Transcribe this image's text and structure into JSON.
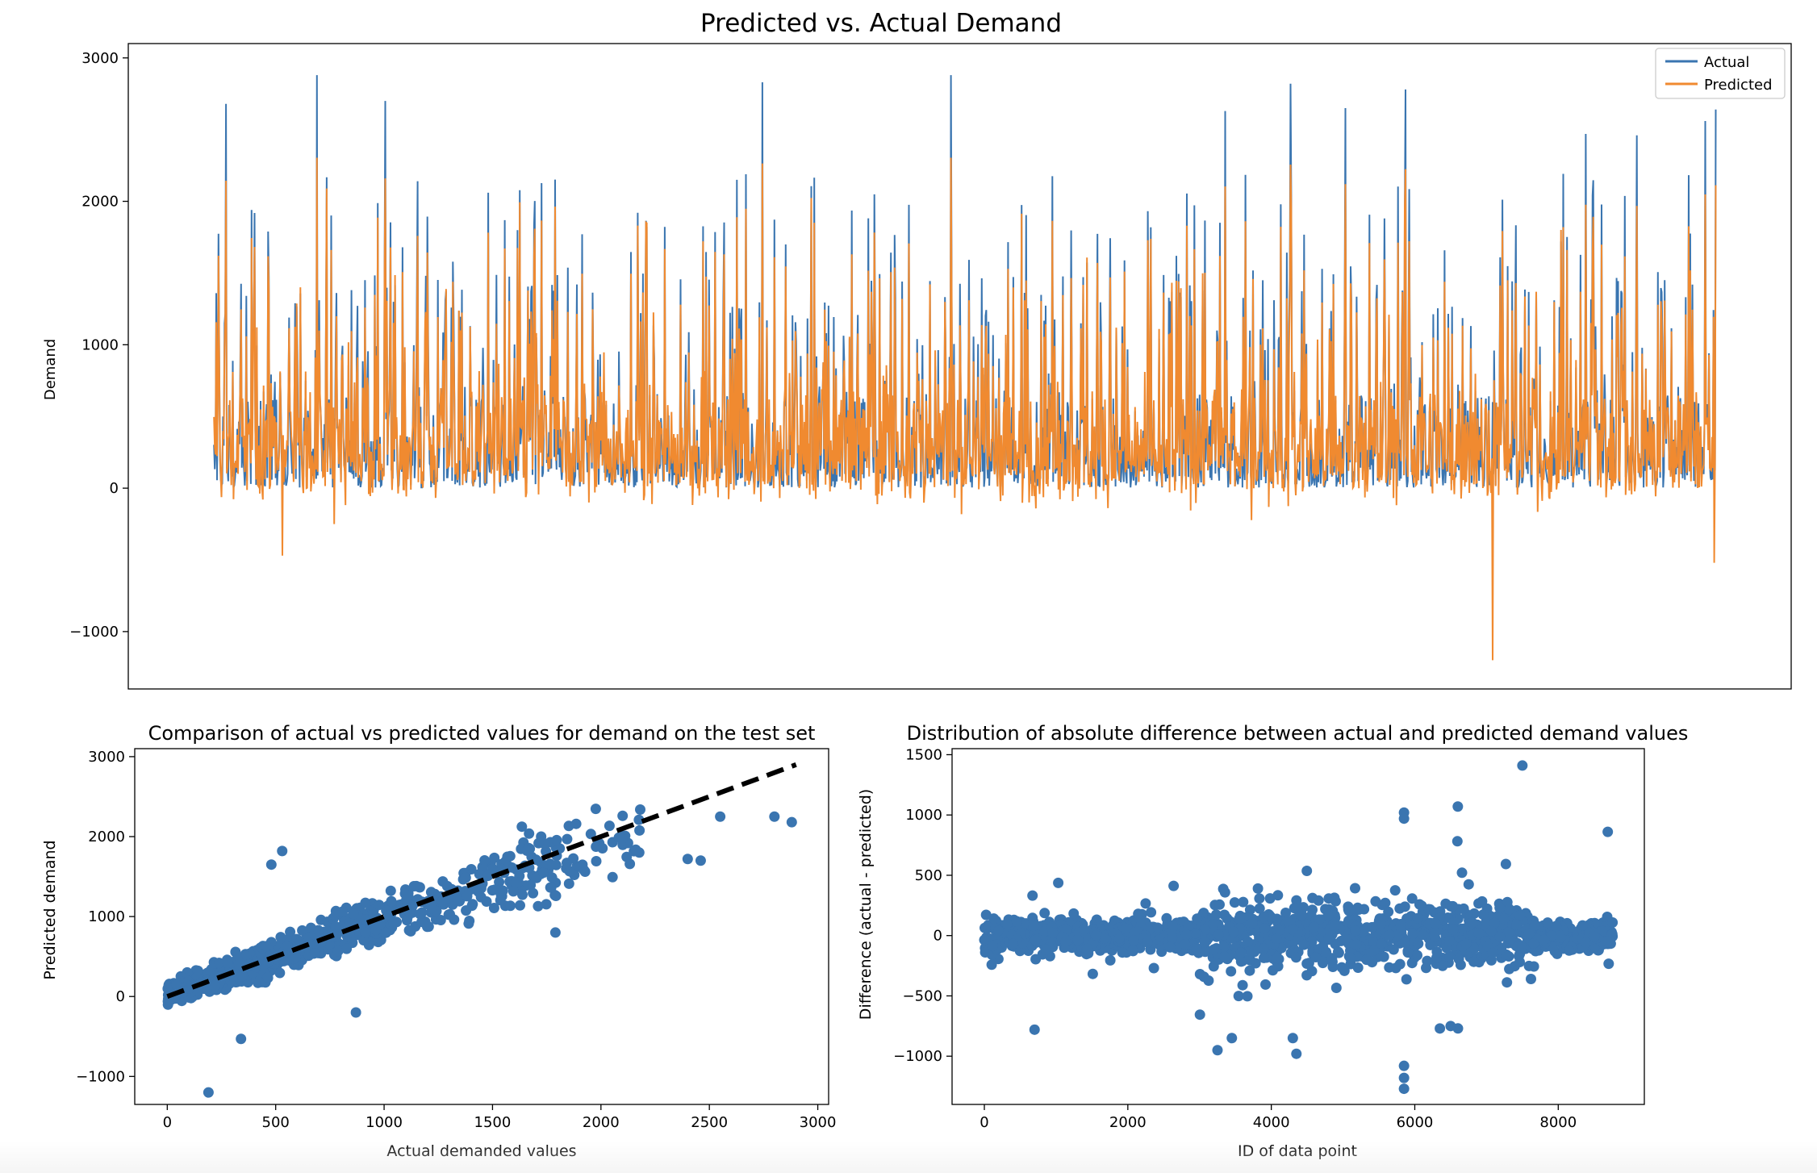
{
  "colors": {
    "actual": "#3a75b0",
    "predicted": "#f08a30",
    "scatter": "#3a75b0",
    "axis": "#000000",
    "fit_line": "#000000"
  },
  "chart_data": [
    {
      "type": "line",
      "title": "Predicted vs. Actual Demand",
      "xlabel": "",
      "ylabel": "Demand",
      "xlim": [
        -500,
        9200
      ],
      "ylim": [
        -1400,
        3100
      ],
      "yticks": [
        -1000,
        0,
        1000,
        2000,
        3000
      ],
      "ytick_labels": [
        "−1000",
        "0",
        "1000",
        "2000",
        "3000"
      ],
      "x_ticks_visible": false,
      "grid": false,
      "legend": "top-right",
      "n_points": 2000,
      "x_start": 0,
      "x_end": 8760,
      "series": [
        {
          "name": "Actual",
          "color": "#3a75b0",
          "values_description_shape": "spiky demand series, mostly 0-1500, peaks near 2800"
        },
        {
          "name": "Predicted",
          "color": "#f08a30",
          "values_description_shape": "follows actual, occasional negative dips to about -1200"
        }
      ],
      "notable_actual_peaks": [
        {
          "x": 70,
          "y": 2680
        },
        {
          "x": 600,
          "y": 2880
        },
        {
          "x": 1000,
          "y": 2700
        },
        {
          "x": 3200,
          "y": 2830
        },
        {
          "x": 4300,
          "y": 2880
        },
        {
          "x": 5900,
          "y": 2630
        },
        {
          "x": 6280,
          "y": 2820
        },
        {
          "x": 6600,
          "y": 2650
        },
        {
          "x": 6950,
          "y": 2780
        },
        {
          "x": 8000,
          "y": 2470
        },
        {
          "x": 8300,
          "y": 2460
        },
        {
          "x": 8700,
          "y": 2560
        },
        {
          "x": 8850,
          "y": 2640
        }
      ],
      "notable_predicted_dips": [
        {
          "x": 400,
          "y": -470
        },
        {
          "x": 700,
          "y": -250
        },
        {
          "x": 7460,
          "y": -1200
        },
        {
          "x": 8750,
          "y": -520
        }
      ]
    },
    {
      "type": "scatter",
      "title": "Comparison of actual vs predicted values for demand on the test set",
      "xlabel": "Actual demanded values",
      "ylabel": "Predicted demand",
      "xlim": [
        -150,
        3050
      ],
      "ylim": [
        -1350,
        3100
      ],
      "xticks": [
        0,
        500,
        1000,
        1500,
        2000,
        2500,
        3000
      ],
      "yticks": [
        -1000,
        0,
        1000,
        2000,
        3000
      ],
      "ytick_labels": [
        "−1000",
        "0",
        "1000",
        "2000",
        "3000"
      ],
      "reference_line": {
        "style": "dashed",
        "from": [
          0,
          0
        ],
        "to": [
          2900,
          2900
        ]
      },
      "n_points": 900,
      "outliers": [
        {
          "x": 190,
          "y": -1200
        },
        {
          "x": 2550,
          "y": 2250
        },
        {
          "x": 2800,
          "y": 2250
        },
        {
          "x": 2880,
          "y": 2180
        },
        {
          "x": 2460,
          "y": 1700
        },
        {
          "x": 1790,
          "y": 800
        },
        {
          "x": 870,
          "y": -200
        },
        {
          "x": 340,
          "y": -530
        },
        {
          "x": 480,
          "y": 1650
        },
        {
          "x": 530,
          "y": 1820
        },
        {
          "x": 2100,
          "y": 2260
        },
        {
          "x": 2400,
          "y": 1720
        }
      ]
    },
    {
      "type": "scatter",
      "title": "Distribution of absolute difference between actual and predicted demand values",
      "xlabel": "ID of data point",
      "ylabel": "Difference (actual - predicted)",
      "xlim": [
        -450,
        9200
      ],
      "ylim": [
        -1400,
        1550
      ],
      "xticks": [
        0,
        2000,
        4000,
        6000,
        8000
      ],
      "yticks": [
        -1000,
        -500,
        0,
        500,
        1000,
        1500
      ],
      "ytick_labels": [
        "−1000",
        "−500",
        "0",
        "500",
        "1000",
        "1500"
      ],
      "n_points": 1400,
      "outliers": [
        {
          "x": 7500,
          "y": 1410
        },
        {
          "x": 6600,
          "y": 1070
        },
        {
          "x": 5850,
          "y": 1020
        },
        {
          "x": 5850,
          "y": 970
        },
        {
          "x": 8690,
          "y": 860
        },
        {
          "x": 5850,
          "y": -1080
        },
        {
          "x": 5850,
          "y": -1180
        },
        {
          "x": 5850,
          "y": -1270
        },
        {
          "x": 4350,
          "y": -980
        },
        {
          "x": 3250,
          "y": -950
        },
        {
          "x": 700,
          "y": -780
        },
        {
          "x": 6500,
          "y": -750
        },
        {
          "x": 6350,
          "y": -770
        },
        {
          "x": 3450,
          "y": -850
        },
        {
          "x": 4300,
          "y": -850
        }
      ]
    }
  ]
}
